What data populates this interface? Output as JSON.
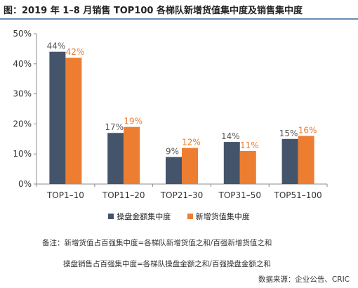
{
  "title": "图：2019 年 1–8 月销售 TOP100 各梯队新增货值集中度及销售集中度",
  "chart_data": {
    "type": "bar",
    "categories": [
      "TOP1–10",
      "TOP11–20",
      "TOP21–30",
      "TOP31–50",
      "TOP51–100"
    ],
    "series": [
      {
        "name": "操盘金额集中度",
        "color": "#44546a",
        "labelColor": "#595959",
        "values": [
          44,
          17,
          9,
          14,
          15
        ]
      },
      {
        "name": "新增货值集中度",
        "color": "#ed7d31",
        "labelColor": "#ed7d31",
        "values": [
          42,
          19,
          12,
          11,
          16
        ]
      }
    ],
    "ylim": [
      0,
      50
    ],
    "yticks": [
      "0%",
      "10%",
      "20%",
      "30%",
      "40%",
      "50%"
    ],
    "value_suffix": "%",
    "grid": false,
    "legend_position": "bottom"
  },
  "notes": [
    "备注：新增货值占百强集中度=各梯队新增货值之和/百强新增货值之和",
    "操盘销售占百强集中度=各梯队操盘金额之和/百强操盘金额之和"
  ],
  "source": "数据来源：企业公告、CRIC"
}
